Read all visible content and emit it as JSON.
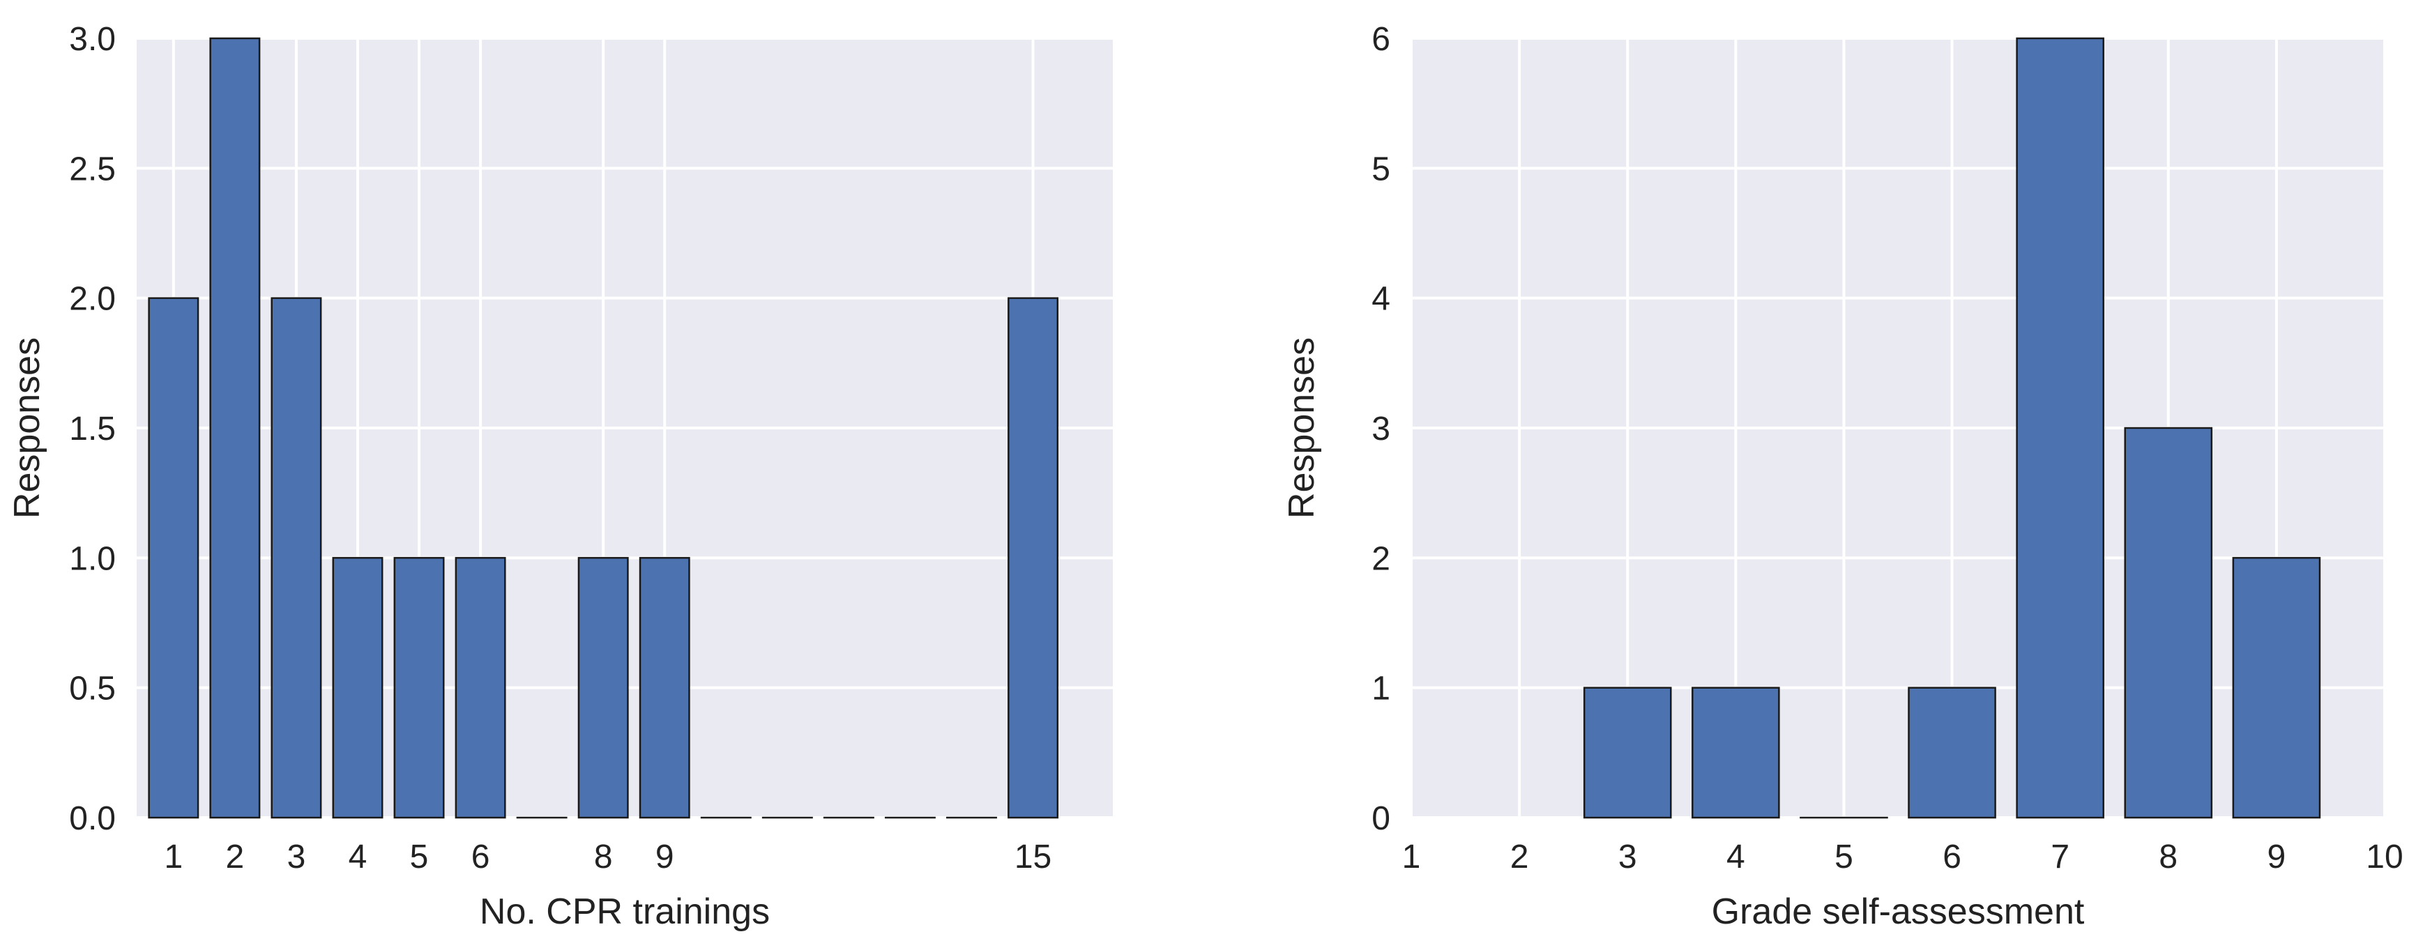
{
  "chart_data": [
    {
      "type": "bar",
      "xlabel": "No. CPR trainings",
      "ylabel": "Responses",
      "x": [
        1,
        2,
        3,
        4,
        5,
        6,
        7,
        8,
        9,
        10,
        11,
        12,
        13,
        14,
        15
      ],
      "values": [
        2,
        3,
        2,
        1,
        1,
        1,
        0,
        1,
        1,
        0,
        0,
        0,
        0,
        0,
        2
      ],
      "xticks": [
        1,
        2,
        3,
        4,
        5,
        6,
        8,
        9,
        15
      ],
      "yticks": [
        "0.0",
        "0.5",
        "1.0",
        "1.5",
        "2.0",
        "2.5",
        "3.0"
      ],
      "ylim": [
        0,
        3
      ],
      "grid": true,
      "bar_color": "#4c72b0"
    },
    {
      "type": "bar",
      "xlabel": "Grade self-assessment",
      "ylabel": "Responses",
      "x": [
        3,
        4,
        5,
        6,
        7,
        8,
        9
      ],
      "values": [
        1,
        1,
        0,
        1,
        6,
        3,
        2
      ],
      "xticks": [
        1,
        2,
        3,
        4,
        5,
        6,
        7,
        8,
        9,
        10
      ],
      "yticks": [
        "0",
        "1",
        "2",
        "3",
        "4",
        "5",
        "6"
      ],
      "ylim": [
        0,
        6
      ],
      "xlim": [
        1,
        10
      ],
      "grid": true,
      "bar_color": "#4c72b0"
    }
  ],
  "theme": {
    "plot_bg": "#eaeaf2",
    "grid_color": "#ffffff",
    "bar_edge": "#1a1a1a"
  }
}
